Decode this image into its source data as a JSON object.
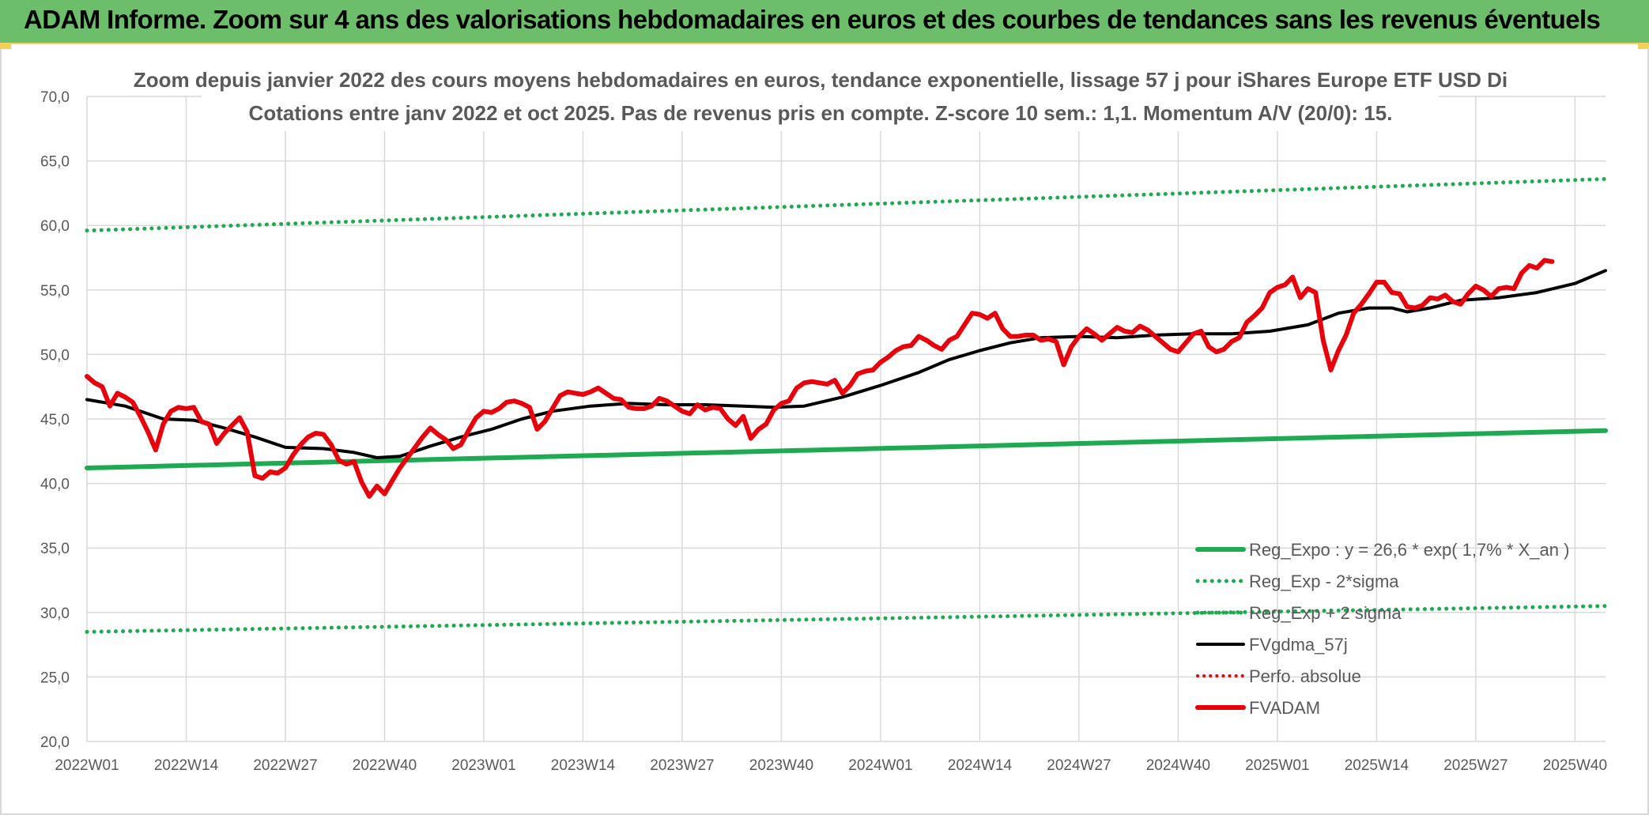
{
  "banner": {
    "title": "ADAM Informe. Zoom sur 4 ans des valorisations hebdomadaires en euros et des courbes de tendances sans les revenus éventuels"
  },
  "colors": {
    "banner_bg": "#6dbe6b",
    "green": "#1eaa50",
    "black": "#000000",
    "red": "#e8000b",
    "red_dotted": "#e8000b",
    "grid": "#d9d9d9",
    "text": "#595959"
  },
  "chart_data": {
    "type": "line",
    "title_line1": "Zoom depuis janvier 2022 des cours moyens hebdomadaires en euros, tendance exponentielle, lissage 57 j pour iShares Europe ETF USD Di",
    "title_line2": "Cotations entre janv 2022 et oct 2025. Pas de revenus pris en compte. Z-score 10 sem.: 1,1. Momentum A/V (20/0): 15.",
    "ylim": [
      20,
      70
    ],
    "yticks": [
      "20,0",
      "25,0",
      "30,0",
      "35,0",
      "40,0",
      "45,0",
      "50,0",
      "55,0",
      "60,0",
      "65,0",
      "70,0"
    ],
    "xlim": [
      0,
      199
    ],
    "x_ticks": [
      {
        "index": 0,
        "label": "2022W01"
      },
      {
        "index": 13,
        "label": "2022W14"
      },
      {
        "index": 26,
        "label": "2022W27"
      },
      {
        "index": 39,
        "label": "2022W40"
      },
      {
        "index": 52,
        "label": "2023W01"
      },
      {
        "index": 65,
        "label": "2023W14"
      },
      {
        "index": 78,
        "label": "2023W27"
      },
      {
        "index": 91,
        "label": "2023W40"
      },
      {
        "index": 104,
        "label": "2024W01"
      },
      {
        "index": 117,
        "label": "2024W14"
      },
      {
        "index": 130,
        "label": "2024W27"
      },
      {
        "index": 143,
        "label": "2024W40"
      },
      {
        "index": 156,
        "label": "2025W01"
      },
      {
        "index": 169,
        "label": "2025W14"
      },
      {
        "index": 182,
        "label": "2025W27"
      },
      {
        "index": 195,
        "label": "2025W40"
      }
    ],
    "series": [
      {
        "name": "Reg_Expo : y = 26,6 * exp( 1,7% *  X_an )",
        "style": "green-solid",
        "points": [
          [
            0,
            41.2
          ],
          [
            199,
            44.1
          ]
        ]
      },
      {
        "name": "Reg_Exp - 2*sigma",
        "style": "green-dotted",
        "points": [
          [
            0,
            28.5
          ],
          [
            199,
            30.5
          ]
        ]
      },
      {
        "name": "Reg_Exp + 2 sigma",
        "style": "green-dotted",
        "points": [
          [
            0,
            59.6
          ],
          [
            199,
            63.6
          ]
        ]
      },
      {
        "name": "FVgdma_57j",
        "style": "black-solid",
        "points": [
          [
            0,
            46.5
          ],
          [
            5,
            46.0
          ],
          [
            10,
            45.0
          ],
          [
            14,
            44.9
          ],
          [
            18,
            44.3
          ],
          [
            22,
            43.6
          ],
          [
            26,
            42.8
          ],
          [
            31,
            42.7
          ],
          [
            35,
            42.4
          ],
          [
            38,
            42.0
          ],
          [
            41,
            42.1
          ],
          [
            45,
            42.9
          ],
          [
            49,
            43.6
          ],
          [
            53,
            44.2
          ],
          [
            57,
            45.0
          ],
          [
            61,
            45.6
          ],
          [
            66,
            46.0
          ],
          [
            71,
            46.2
          ],
          [
            76,
            46.1
          ],
          [
            81,
            46.1
          ],
          [
            86,
            46.0
          ],
          [
            90,
            45.9
          ],
          [
            94,
            46.0
          ],
          [
            99,
            46.7
          ],
          [
            104,
            47.6
          ],
          [
            109,
            48.6
          ],
          [
            113,
            49.6
          ],
          [
            117,
            50.3
          ],
          [
            121,
            50.9
          ],
          [
            125,
            51.3
          ],
          [
            130,
            51.4
          ],
          [
            135,
            51.3
          ],
          [
            140,
            51.5
          ],
          [
            145,
            51.6
          ],
          [
            150,
            51.6
          ],
          [
            155,
            51.8
          ],
          [
            160,
            52.3
          ],
          [
            164,
            53.2
          ],
          [
            168,
            53.6
          ],
          [
            171,
            53.6
          ],
          [
            173,
            53.3
          ],
          [
            176,
            53.6
          ],
          [
            180,
            54.2
          ],
          [
            185,
            54.4
          ],
          [
            190,
            54.8
          ],
          [
            195,
            55.5
          ],
          [
            199,
            56.5
          ]
        ]
      },
      {
        "name": "Perfo. absolue",
        "style": "red-dotted",
        "points": []
      },
      {
        "name": "FVADAM",
        "style": "red-solid",
        "points": [
          [
            0,
            48.3
          ],
          [
            1,
            47.8
          ],
          [
            2,
            47.5
          ],
          [
            3,
            46.0
          ],
          [
            4,
            47.0
          ],
          [
            5,
            46.7
          ],
          [
            6,
            46.3
          ],
          [
            7,
            45.2
          ],
          [
            8,
            44.0
          ],
          [
            9,
            42.6
          ],
          [
            10,
            44.6
          ],
          [
            11,
            45.6
          ],
          [
            12,
            45.9
          ],
          [
            13,
            45.8
          ],
          [
            14,
            45.9
          ],
          [
            15,
            44.8
          ],
          [
            16,
            44.6
          ],
          [
            17,
            43.1
          ],
          [
            18,
            43.9
          ],
          [
            19,
            44.5
          ],
          [
            20,
            45.1
          ],
          [
            21,
            44.0
          ],
          [
            22,
            40.6
          ],
          [
            23,
            40.4
          ],
          [
            24,
            40.9
          ],
          [
            25,
            40.8
          ],
          [
            26,
            41.2
          ],
          [
            27,
            42.2
          ],
          [
            28,
            43.0
          ],
          [
            29,
            43.6
          ],
          [
            30,
            43.9
          ],
          [
            31,
            43.8
          ],
          [
            32,
            43.0
          ],
          [
            33,
            41.8
          ],
          [
            34,
            41.5
          ],
          [
            35,
            41.7
          ],
          [
            36,
            40.1
          ],
          [
            37,
            39.0
          ],
          [
            38,
            39.8
          ],
          [
            39,
            39.2
          ],
          [
            40,
            40.2
          ],
          [
            41,
            41.2
          ],
          [
            42,
            42.0
          ],
          [
            43,
            42.8
          ],
          [
            44,
            43.6
          ],
          [
            45,
            44.3
          ],
          [
            46,
            43.8
          ],
          [
            47,
            43.4
          ],
          [
            48,
            42.7
          ],
          [
            49,
            43.0
          ],
          [
            50,
            44.1
          ],
          [
            51,
            45.1
          ],
          [
            52,
            45.6
          ],
          [
            53,
            45.5
          ],
          [
            54,
            45.8
          ],
          [
            55,
            46.3
          ],
          [
            56,
            46.4
          ],
          [
            57,
            46.2
          ],
          [
            58,
            45.9
          ],
          [
            59,
            44.2
          ],
          [
            60,
            44.8
          ],
          [
            61,
            45.8
          ],
          [
            62,
            46.8
          ],
          [
            63,
            47.1
          ],
          [
            64,
            47.0
          ],
          [
            65,
            46.9
          ],
          [
            66,
            47.1
          ],
          [
            67,
            47.4
          ],
          [
            68,
            47.0
          ],
          [
            69,
            46.6
          ],
          [
            70,
            46.5
          ],
          [
            71,
            45.9
          ],
          [
            72,
            45.8
          ],
          [
            73,
            45.8
          ],
          [
            74,
            46.0
          ],
          [
            75,
            46.6
          ],
          [
            76,
            46.4
          ],
          [
            77,
            46.0
          ],
          [
            78,
            45.6
          ],
          [
            79,
            45.4
          ],
          [
            80,
            46.1
          ],
          [
            81,
            45.7
          ],
          [
            82,
            45.9
          ],
          [
            83,
            45.8
          ],
          [
            84,
            45.0
          ],
          [
            85,
            44.5
          ],
          [
            86,
            45.2
          ],
          [
            87,
            43.5
          ],
          [
            88,
            44.2
          ],
          [
            89,
            44.6
          ],
          [
            90,
            45.7
          ],
          [
            91,
            46.2
          ],
          [
            92,
            46.4
          ],
          [
            93,
            47.4
          ],
          [
            94,
            47.8
          ],
          [
            95,
            47.9
          ],
          [
            96,
            47.8
          ],
          [
            97,
            47.7
          ],
          [
            98,
            48.0
          ],
          [
            99,
            47.0
          ],
          [
            100,
            47.6
          ],
          [
            101,
            48.5
          ],
          [
            102,
            48.7
          ],
          [
            103,
            48.8
          ],
          [
            104,
            49.4
          ],
          [
            105,
            49.8
          ],
          [
            106,
            50.3
          ],
          [
            107,
            50.6
          ],
          [
            108,
            50.7
          ],
          [
            109,
            51.4
          ],
          [
            110,
            51.1
          ],
          [
            111,
            50.7
          ],
          [
            112,
            50.4
          ],
          [
            113,
            51.1
          ],
          [
            114,
            51.4
          ],
          [
            115,
            52.3
          ],
          [
            116,
            53.2
          ],
          [
            117,
            53.1
          ],
          [
            118,
            52.8
          ],
          [
            119,
            53.2
          ],
          [
            120,
            52.0
          ],
          [
            121,
            51.4
          ],
          [
            122,
            51.4
          ],
          [
            123,
            51.5
          ],
          [
            124,
            51.5
          ],
          [
            125,
            51.1
          ],
          [
            126,
            51.2
          ],
          [
            127,
            51.0
          ],
          [
            128,
            49.2
          ],
          [
            129,
            50.6
          ],
          [
            130,
            51.4
          ],
          [
            131,
            52.0
          ],
          [
            132,
            51.6
          ],
          [
            133,
            51.1
          ],
          [
            134,
            51.6
          ],
          [
            135,
            52.1
          ],
          [
            136,
            51.8
          ],
          [
            137,
            51.7
          ],
          [
            138,
            52.2
          ],
          [
            139,
            51.9
          ],
          [
            140,
            51.4
          ],
          [
            141,
            50.9
          ],
          [
            142,
            50.4
          ],
          [
            143,
            50.2
          ],
          [
            144,
            50.9
          ],
          [
            145,
            51.6
          ],
          [
            146,
            51.8
          ],
          [
            147,
            50.6
          ],
          [
            148,
            50.2
          ],
          [
            149,
            50.4
          ],
          [
            150,
            51.0
          ],
          [
            151,
            51.3
          ],
          [
            152,
            52.5
          ],
          [
            153,
            53.0
          ],
          [
            154,
            53.6
          ],
          [
            155,
            54.8
          ],
          [
            156,
            55.2
          ],
          [
            157,
            55.4
          ],
          [
            158,
            56.0
          ],
          [
            159,
            54.4
          ],
          [
            160,
            55.1
          ],
          [
            161,
            54.8
          ],
          [
            162,
            51.1
          ],
          [
            163,
            48.8
          ],
          [
            164,
            50.3
          ],
          [
            165,
            51.5
          ],
          [
            166,
            53.2
          ],
          [
            167,
            53.9
          ],
          [
            168,
            54.7
          ],
          [
            169,
            55.6
          ],
          [
            170,
            55.6
          ],
          [
            171,
            54.8
          ],
          [
            172,
            54.7
          ],
          [
            173,
            53.7
          ],
          [
            174,
            53.6
          ],
          [
            175,
            53.8
          ],
          [
            176,
            54.4
          ],
          [
            177,
            54.3
          ],
          [
            178,
            54.6
          ],
          [
            179,
            54.1
          ],
          [
            180,
            53.9
          ],
          [
            181,
            54.7
          ],
          [
            182,
            55.3
          ],
          [
            183,
            55.0
          ],
          [
            184,
            54.5
          ],
          [
            185,
            55.1
          ],
          [
            186,
            55.2
          ],
          [
            187,
            55.1
          ],
          [
            188,
            56.3
          ],
          [
            189,
            56.9
          ],
          [
            190,
            56.7
          ],
          [
            191,
            57.3
          ],
          [
            192,
            57.2
          ]
        ]
      }
    ],
    "legend_position": "bottom-right"
  }
}
